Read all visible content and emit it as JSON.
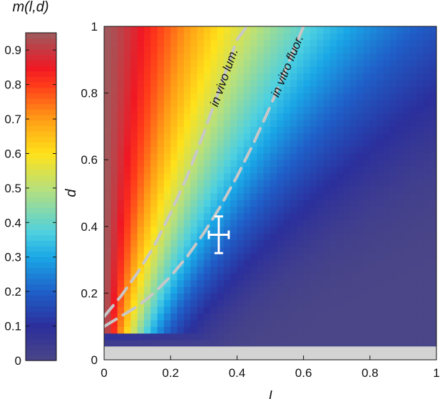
{
  "chart_data": {
    "type": "heatmap",
    "colorbar": {
      "title": "m(l,d)",
      "range": [
        0,
        0.95
      ],
      "ticks": [
        "0",
        "0.1",
        "0.2",
        "0.3",
        "0.4",
        "0.5",
        "0.6",
        "0.7",
        "0.8",
        "0.9"
      ],
      "tick_values": [
        0,
        0.1,
        0.2,
        0.3,
        0.4,
        0.5,
        0.6,
        0.7,
        0.8,
        0.9
      ],
      "colormap": "jet-like",
      "colors": [
        "#4b4687",
        "#2b2f9c",
        "#1f5fc8",
        "#1aa7e6",
        "#4dd0e1",
        "#b9e07a",
        "#ffe21a",
        "#ff9d16",
        "#ff3a1a",
        "#f01824",
        "#9d5b5e"
      ],
      "color_stops": [
        0,
        0.1,
        0.2,
        0.3,
        0.37,
        0.5,
        0.6,
        0.7,
        0.8,
        0.85,
        0.95
      ]
    },
    "xlabel": "l",
    "ylabel": "d",
    "xlim": [
      0,
      1
    ],
    "ylim": [
      0,
      1
    ],
    "xticks": [
      "0",
      "0.2",
      "0.4",
      "0.6",
      "0.8",
      "1"
    ],
    "xtick_values": [
      0,
      0.2,
      0.4,
      0.6,
      0.8,
      1
    ],
    "yticks": [
      "0",
      "0.2",
      "0.4",
      "0.6",
      "0.8",
      "1"
    ],
    "ytick_values": [
      0,
      0.2,
      0.4,
      0.6,
      0.8,
      1
    ],
    "grid": false,
    "heatmap_grid": {
      "nx": 50,
      "ny": 50
    },
    "masked_band": {
      "d_range": [
        0,
        0.04
      ],
      "color": "#d3d3d3"
    },
    "curves": [
      {
        "label": "in vivo lum.",
        "style": "dashed",
        "color": "#c8c8c8",
        "x": [
          0.0,
          0.05,
          0.1,
          0.15,
          0.2,
          0.25,
          0.3,
          0.35,
          0.4,
          0.43
        ],
        "y": [
          0.13,
          0.19,
          0.26,
          0.34,
          0.44,
          0.55,
          0.68,
          0.82,
          0.96,
          1.0
        ]
      },
      {
        "label": "in vitro fluor.",
        "style": "dashed",
        "color": "#c8c8c8",
        "x": [
          0.0,
          0.05,
          0.1,
          0.15,
          0.2,
          0.25,
          0.3,
          0.35,
          0.4,
          0.45,
          0.5,
          0.55,
          0.6
        ],
        "y": [
          0.1,
          0.13,
          0.16,
          0.2,
          0.25,
          0.31,
          0.38,
          0.46,
          0.55,
          0.65,
          0.76,
          0.88,
          1.0
        ]
      }
    ],
    "data_point": {
      "x": 0.345,
      "y": 0.375,
      "x_err": 0.03,
      "y_err": 0.055,
      "color": "#ffffff"
    }
  }
}
